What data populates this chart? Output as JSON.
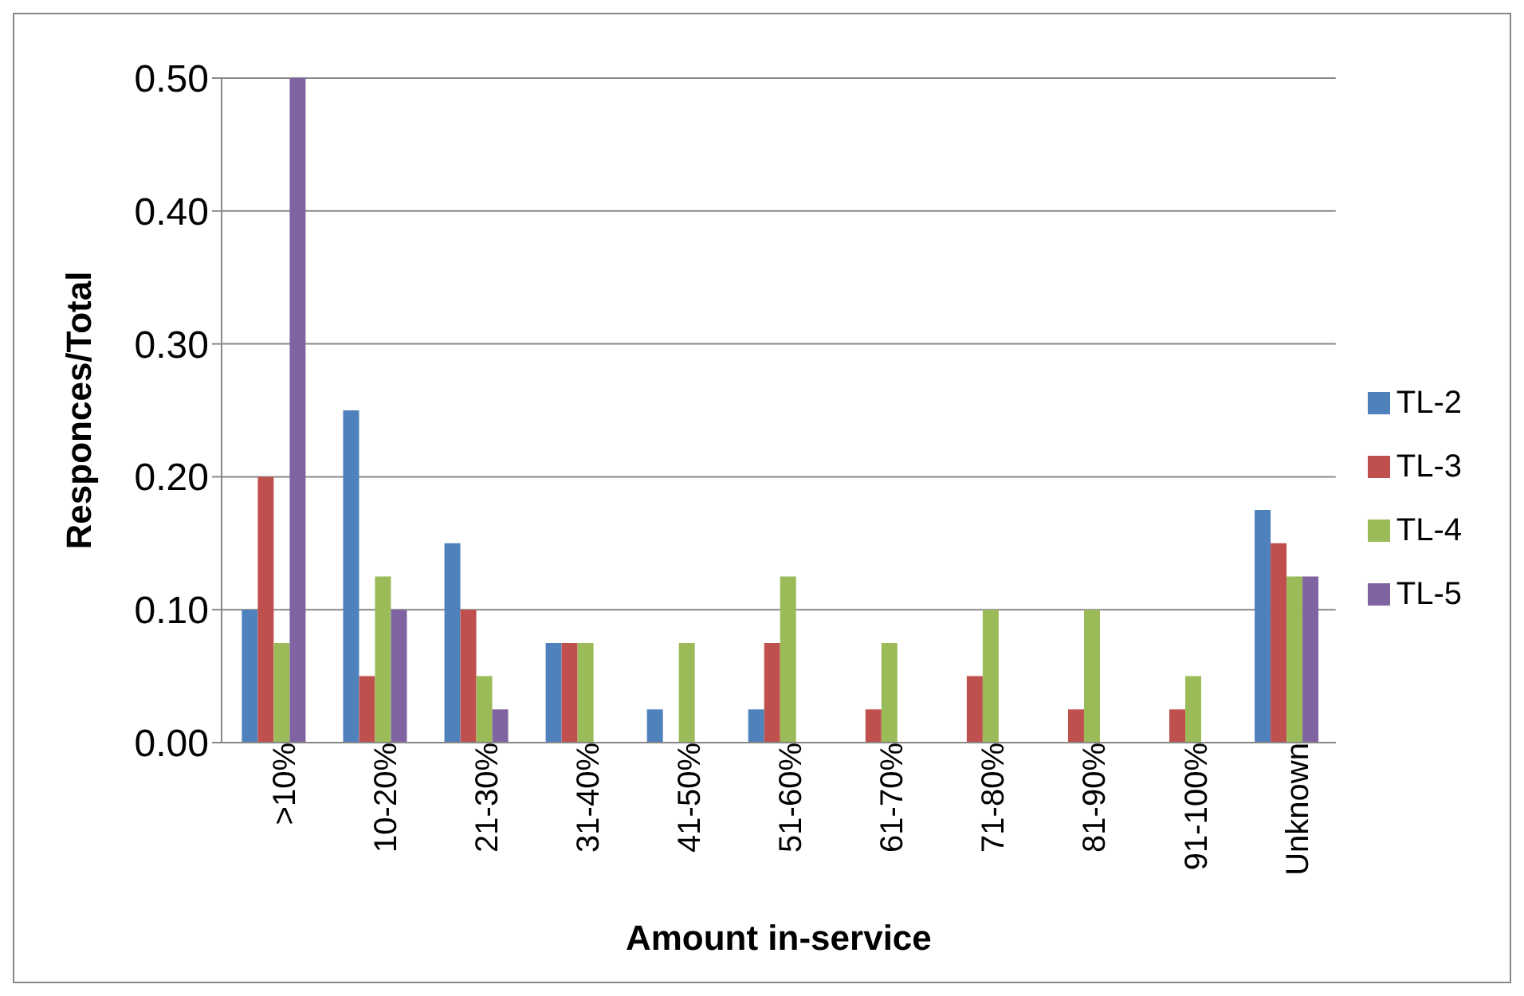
{
  "chart_data": {
    "type": "bar",
    "xlabel": "Amount in-service",
    "ylabel": "Responces/Total",
    "categories": [
      ">10%",
      "10-20%",
      "21-30%",
      "31-40%",
      "41-50%",
      "51-60%",
      "61-70%",
      "71-80%",
      "81-90%",
      "91-100%",
      "Unknown"
    ],
    "series": [
      {
        "name": "TL-2",
        "color": "#4f81bd",
        "values": [
          0.1,
          0.25,
          0.15,
          0.075,
          0.025,
          0.025,
          0,
          0,
          0,
          0,
          0.175
        ]
      },
      {
        "name": "TL-3",
        "color": "#c0504d",
        "values": [
          0.2,
          0.05,
          0.1,
          0.075,
          0,
          0.075,
          0.025,
          0.05,
          0.025,
          0.025,
          0.15
        ]
      },
      {
        "name": "TL-4",
        "color": "#9bbb59",
        "values": [
          0.075,
          0.125,
          0.05,
          0.075,
          0.075,
          0.125,
          0.075,
          0.1,
          0.1,
          0.05,
          0.125
        ]
      },
      {
        "name": "TL-5",
        "color": "#8064a2",
        "values": [
          0.5,
          0.1,
          0.025,
          0,
          0,
          0,
          0,
          0,
          0,
          0,
          0.125
        ]
      }
    ],
    "ylim": [
      0,
      0.5
    ],
    "yticks": [
      {
        "value": 0,
        "label": "0.00"
      },
      {
        "value": 0.1,
        "label": "0.10"
      },
      {
        "value": 0.2,
        "label": "0.20"
      },
      {
        "value": 0.3,
        "label": "0.30"
      },
      {
        "value": 0.4,
        "label": "0.40"
      },
      {
        "value": 0.5,
        "label": "0.50"
      }
    ],
    "grid": "y",
    "legend": "right"
  }
}
